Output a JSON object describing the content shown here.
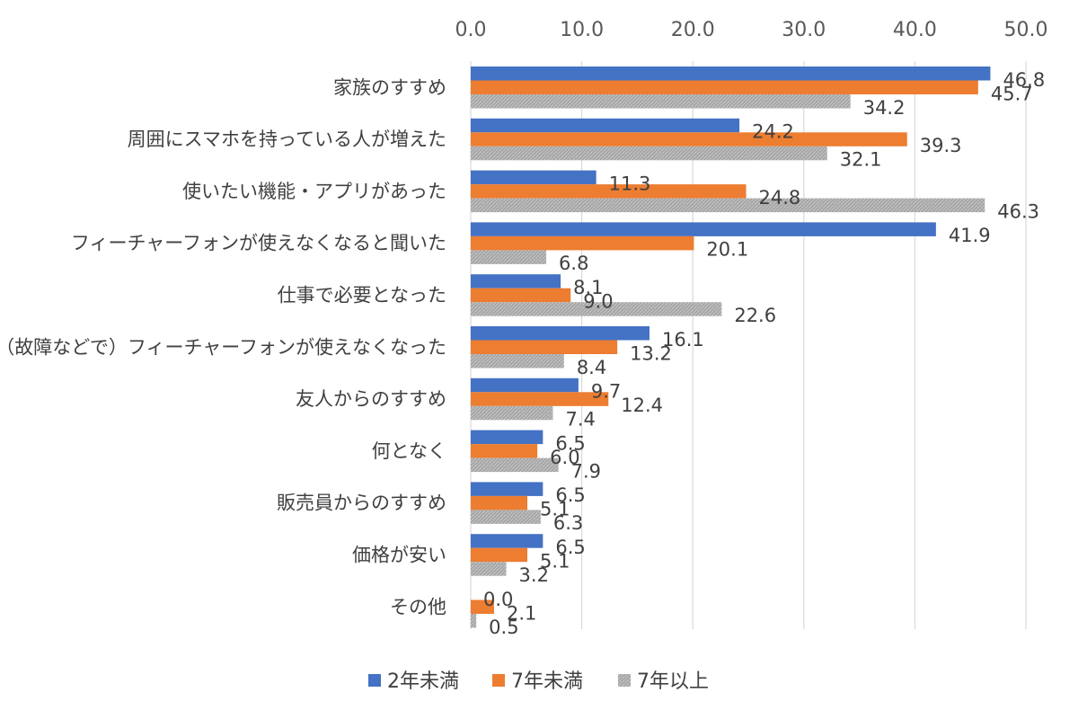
{
  "chart_data": {
    "type": "bar",
    "orientation": "horizontal",
    "categories": [
      "家族のすすめ",
      "周囲にスマホを持っている人が増えた",
      "使いたい機能・アプリがあった",
      "フィーチャーフォンが使えなくなると聞いた",
      "仕事で必要となった",
      "（故障などで）フィーチャーフォンが使えなくなった",
      "友人からのすすめ",
      "何となく",
      "販売員からのすすめ",
      "価格が安い",
      "その他"
    ],
    "series": [
      {
        "name": "2年未満",
        "color": "#4472c4",
        "values": [
          46.8,
          24.2,
          11.3,
          41.9,
          8.1,
          16.1,
          9.7,
          6.5,
          6.5,
          6.5,
          0.0
        ]
      },
      {
        "name": "7年未満",
        "color": "#ed7d31",
        "values": [
          45.7,
          39.3,
          24.8,
          20.1,
          9.0,
          13.2,
          12.4,
          6.0,
          5.1,
          5.1,
          2.1
        ]
      },
      {
        "name": "7年以上",
        "color": "#a5a5a5",
        "values": [
          34.2,
          32.1,
          46.3,
          6.8,
          22.6,
          8.4,
          7.4,
          7.9,
          6.3,
          3.2,
          0.5
        ]
      }
    ],
    "x_ticks": [
      "0.0",
      "10.0",
      "20.0",
      "30.0",
      "40.0",
      "50.0"
    ],
    "xlim": [
      0,
      50
    ],
    "grid": true,
    "legend_position": "bottom",
    "xaxis_position": "top"
  }
}
